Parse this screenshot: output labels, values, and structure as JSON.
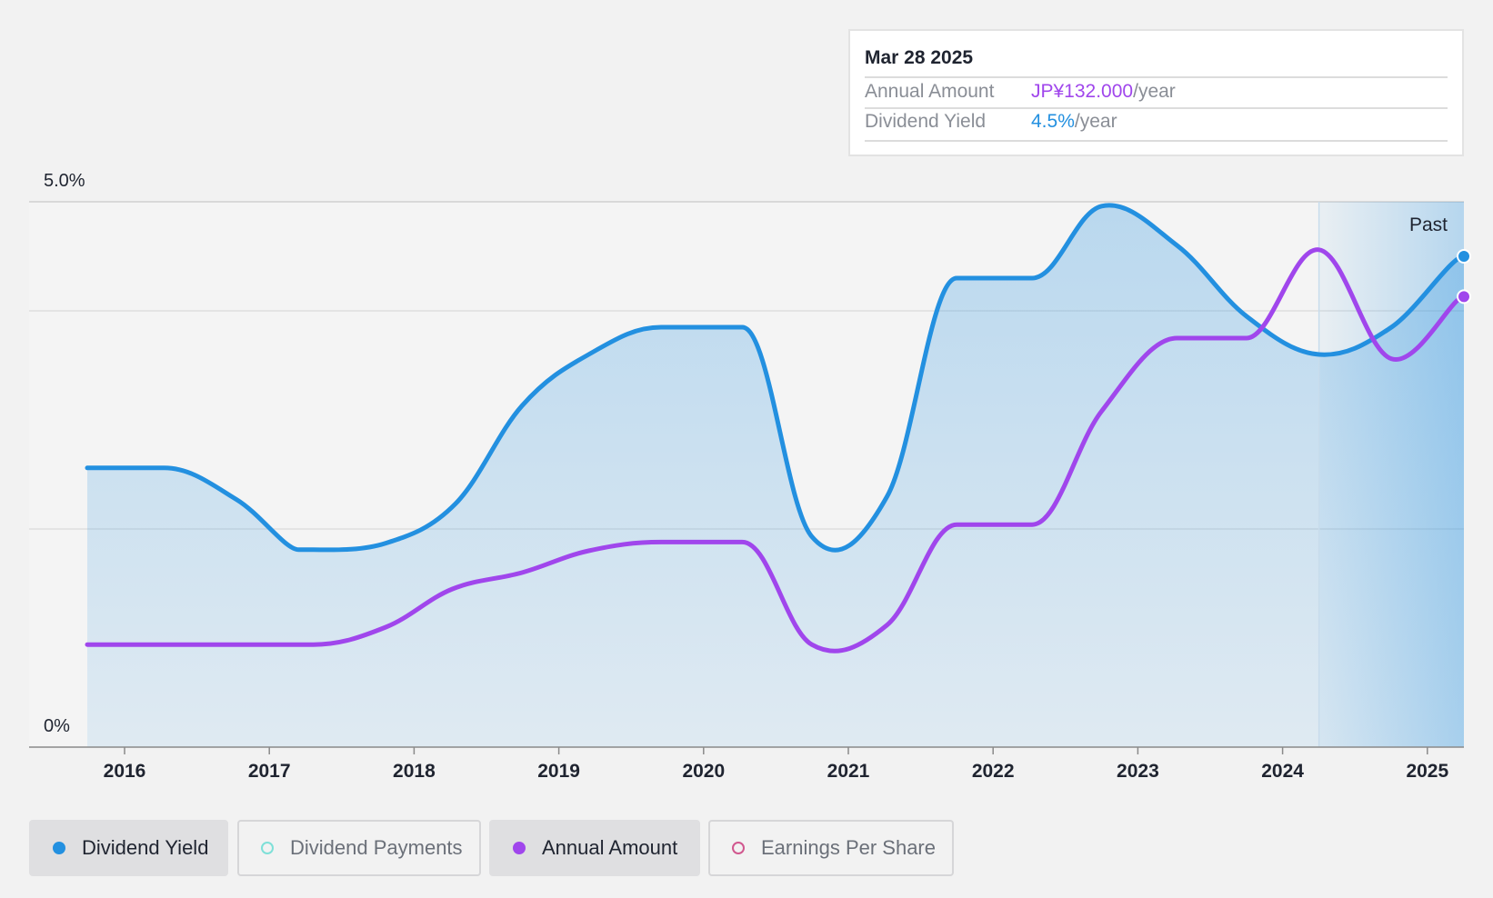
{
  "tooltip": {
    "date": "Mar 28 2025",
    "rows": [
      {
        "label": "Annual Amount",
        "value": "JP¥132.000",
        "unit": "/year",
        "color": "#a046ec"
      },
      {
        "label": "Dividend Yield",
        "value": "4.5%",
        "unit": "/year",
        "color": "#2390e0"
      }
    ]
  },
  "legend": [
    {
      "label": "Dividend Yield",
      "color": "#2390e0",
      "active": true,
      "filled": true
    },
    {
      "label": "Dividend Payments",
      "color": "#7fe0d8",
      "active": false,
      "filled": false
    },
    {
      "label": "Annual Amount",
      "color": "#a046ec",
      "active": true,
      "filled": true
    },
    {
      "label": "Earnings Per Share",
      "color": "#d1588f",
      "active": false,
      "filled": false
    }
  ],
  "chart_data": {
    "type": "line",
    "x_ticks": [
      "2016",
      "2017",
      "2018",
      "2019",
      "2020",
      "2021",
      "2022",
      "2023",
      "2024",
      "2025"
    ],
    "y_tick_labels": [
      "5.0%",
      "0%"
    ],
    "ylim": [
      0,
      5.0
    ],
    "past_label": "Past",
    "past_start": 2024.24,
    "grid": true,
    "series": [
      {
        "name": "Dividend Yield",
        "color": "#2390e0",
        "area_fill": true,
        "points": [
          [
            2015.74,
            2.56
          ],
          [
            2016.27,
            2.56
          ],
          [
            2016.77,
            2.27
          ],
          [
            2017.2,
            1.81
          ],
          [
            2017.3,
            1.81
          ],
          [
            2017.8,
            1.87
          ],
          [
            2018.28,
            2.23
          ],
          [
            2018.74,
            3.13
          ],
          [
            2019.2,
            3.6
          ],
          [
            2019.7,
            3.85
          ],
          [
            2020.26,
            3.85
          ],
          [
            2020.74,
            1.93
          ],
          [
            2021.26,
            2.3
          ],
          [
            2021.74,
            4.3
          ],
          [
            2022.26,
            4.3
          ],
          [
            2022.74,
            4.96
          ],
          [
            2023.26,
            4.6
          ],
          [
            2023.74,
            3.95
          ],
          [
            2024.24,
            3.6
          ],
          [
            2024.74,
            3.85
          ],
          [
            2025.24,
            4.5
          ]
        ]
      },
      {
        "name": "Annual Amount",
        "color": "#a046ec",
        "area_fill": false,
        "points": [
          [
            2015.74,
            0.94
          ],
          [
            2016.27,
            0.94
          ],
          [
            2016.77,
            0.94
          ],
          [
            2017.3,
            0.94
          ],
          [
            2017.8,
            1.1
          ],
          [
            2018.26,
            1.45
          ],
          [
            2018.74,
            1.6
          ],
          [
            2019.2,
            1.8
          ],
          [
            2019.7,
            1.88
          ],
          [
            2020.26,
            1.88
          ],
          [
            2020.74,
            0.94
          ],
          [
            2021.26,
            1.12
          ],
          [
            2021.74,
            2.04
          ],
          [
            2022.26,
            2.04
          ],
          [
            2022.74,
            3.08
          ],
          [
            2023.26,
            3.75
          ],
          [
            2023.74,
            3.75
          ],
          [
            2024.24,
            4.56
          ],
          [
            2024.74,
            3.56
          ],
          [
            2025.24,
            4.13
          ]
        ]
      }
    ]
  }
}
